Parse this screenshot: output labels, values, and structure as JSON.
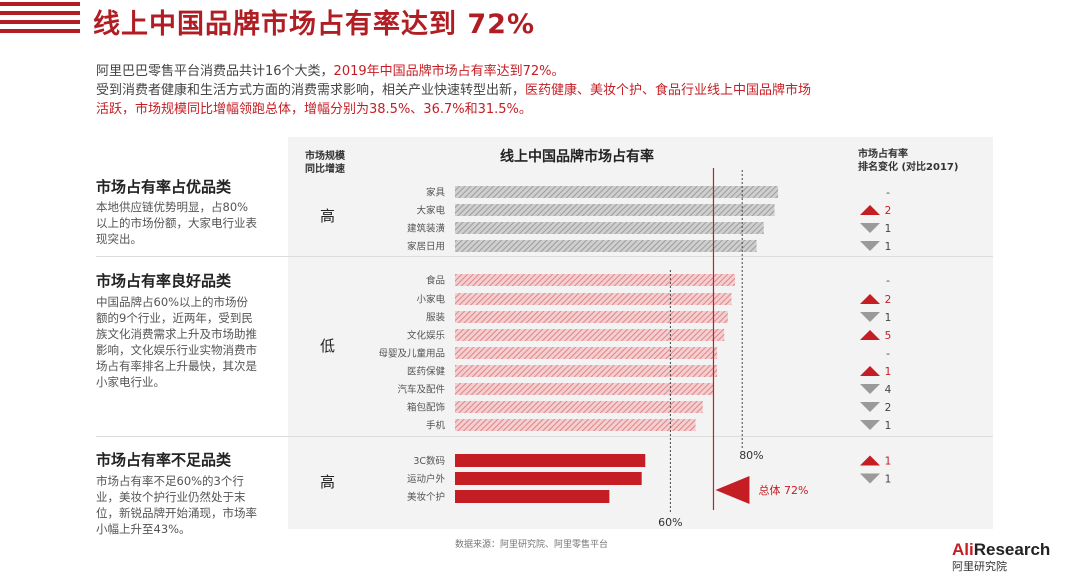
{
  "title": "线上中国品牌市场占有率达到 72%",
  "intro": {
    "line1_plain": "阿里巴巴零售平台消费品共计16个大类，",
    "line1_highlight": "2019年中国品牌市场占有率达到72%。",
    "line2_plain": "受到消费者健康和生活方式方面的消费需求影响，相关产业快速转型出新，",
    "line2_highlight": "医药健康、美妆个护、食品行业线上中国品牌市场",
    "line3_highlight": "活跃，市场规模同比增幅领跑总体，增幅分别为38.5%、36.7%和31.5%。"
  },
  "column_headers": {
    "speed_l1": "市场规模",
    "speed_l2": "同比增速",
    "rank_l1": "市场占有率",
    "rank_l2": "排名变化 (对比2017)"
  },
  "groups": [
    {
      "title": "市场占有率占优品类",
      "desc": "本地供应链优势明显，占80%以上的市场份额，大家电行业表现突出。",
      "speed": "高"
    },
    {
      "title": "市场占有率良好品类",
      "desc": "中国品牌占60%以上的市场份额的9个行业，近两年，受到民族文化消费需求上升及市场助推影响，文化娱乐行业实物消费市场占有率排名上升最快，其次是小家电行业。",
      "speed": "低"
    },
    {
      "title": "市场占有率不足品类",
      "desc": "市场占有率不足60%的3个行业，美妆个护行业仍然处于末位，新锐品牌开始涌现，市场率小幅上升至43%。",
      "speed": "高"
    }
  ],
  "chart_data": {
    "type": "bar",
    "orientation": "horizontal",
    "title": "线上中国品牌市场占有率",
    "categories": [
      "家具",
      "大家电",
      "建筑装潢",
      "家居日用",
      "食品",
      "小家电",
      "服装",
      "文化娱乐",
      "母婴及儿童用品",
      "医药保健",
      "汽车及配件",
      "箱包配饰",
      "手机",
      "3C数码",
      "运动户外",
      "美妆个护"
    ],
    "values": [
      90,
      89,
      86,
      84,
      78,
      77,
      76,
      75,
      73,
      73,
      72,
      69,
      67,
      53,
      52,
      43
    ],
    "group_index": [
      0,
      0,
      0,
      0,
      1,
      1,
      1,
      1,
      1,
      1,
      1,
      1,
      1,
      2,
      2,
      2
    ],
    "group_colors": [
      "#b8b8b8",
      "#e8a3a6",
      "#c41e24"
    ],
    "xlim": [
      0,
      100
    ],
    "reference_lines": [
      {
        "value": 80,
        "label": "80%"
      },
      {
        "value": 60,
        "label": "60%"
      },
      {
        "value": 72,
        "label": "总体 72%"
      }
    ],
    "rank_changes": [
      {
        "dir": "none",
        "label": "-"
      },
      {
        "dir": "up",
        "label": "2"
      },
      {
        "dir": "down",
        "label": "1"
      },
      {
        "dir": "down",
        "label": "1"
      },
      {
        "dir": "none",
        "label": "-"
      },
      {
        "dir": "up",
        "label": "2"
      },
      {
        "dir": "down",
        "label": "1"
      },
      {
        "dir": "up",
        "label": "5"
      },
      {
        "dir": "none",
        "label": "-"
      },
      {
        "dir": "up",
        "label": "1"
      },
      {
        "dir": "down",
        "label": "4"
      },
      {
        "dir": "down",
        "label": "2"
      },
      {
        "dir": "down",
        "label": "1"
      },
      {
        "dir": "up",
        "label": "1"
      },
      {
        "dir": "down",
        "label": "1"
      },
      {
        "dir": "none",
        "label": ""
      }
    ],
    "up_color": "#c41e24",
    "down_color": "#9a9a9a"
  },
  "source": "数据来源：阿里研究院、阿里零售平台",
  "brand": {
    "ali": "Ali",
    "research": "Research",
    "sub": "阿里研究院"
  }
}
